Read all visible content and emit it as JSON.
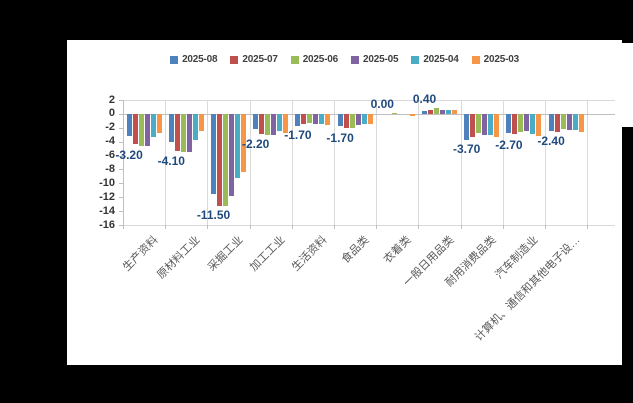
{
  "chart_data": {
    "type": "bar",
    "title": "",
    "legend_position": "top",
    "grid": "vertical-only",
    "categories": [
      "生产资料",
      "原材料工业",
      "采掘工业",
      "加工工业",
      "生活资料",
      "食品类",
      "衣着类",
      "一般日用品类",
      "耐用消费品类",
      "汽车制造业",
      "计算机、通信和其他电子设…"
    ],
    "series": [
      {
        "name": "2025-08",
        "color": "#4F81BD",
        "values": [
          -3.2,
          -4.1,
          -11.5,
          -2.2,
          -1.7,
          -1.7,
          0.0,
          0.4,
          -3.7,
          -2.7,
          -2.4
        ]
      },
      {
        "name": "2025-07",
        "color": "#C0504D",
        "values": [
          -4.3,
          -5.4,
          -13.3,
          -2.9,
          -1.4,
          -2.0,
          0.0,
          0.6,
          -3.4,
          -2.9,
          -2.6
        ]
      },
      {
        "name": "2025-06",
        "color": "#9BBB59",
        "values": [
          -4.6,
          -5.5,
          -13.2,
          -3.0,
          -1.3,
          -2.1,
          0.1,
          0.8,
          -2.8,
          -2.6,
          -2.2
        ]
      },
      {
        "name": "2025-05",
        "color": "#8064A2",
        "values": [
          -4.6,
          -5.5,
          -11.9,
          -3.0,
          -1.4,
          -1.6,
          0.0,
          0.6,
          -3.1,
          -2.4,
          -2.3
        ]
      },
      {
        "name": "2025-04",
        "color": "#4BACC6",
        "values": [
          -3.3,
          -3.7,
          -9.3,
          -2.4,
          -1.4,
          -1.5,
          0.0,
          0.5,
          -3.1,
          -2.9,
          -2.3
        ]
      },
      {
        "name": "2025-03",
        "color": "#F79646",
        "values": [
          -2.8,
          -2.5,
          -8.4,
          -2.7,
          -1.6,
          -1.5,
          -0.3,
          0.6,
          -3.4,
          -3.2,
          -2.6
        ]
      }
    ],
    "data_labels": {
      "labeled_series": "2025-08",
      "values": [
        "-3.20",
        "-4.10",
        "-11.50",
        "-2.20",
        "-1.70",
        "-1.70",
        "0.00",
        "0.40",
        "-3.70",
        "-2.70",
        "-2.40"
      ],
      "color": "#1F497D"
    },
    "y_axis": {
      "min": -16,
      "max": 2,
      "step": 2,
      "ticks": [
        2,
        0,
        -2,
        -4,
        -6,
        -8,
        -10,
        -12,
        -14,
        -16
      ]
    }
  }
}
